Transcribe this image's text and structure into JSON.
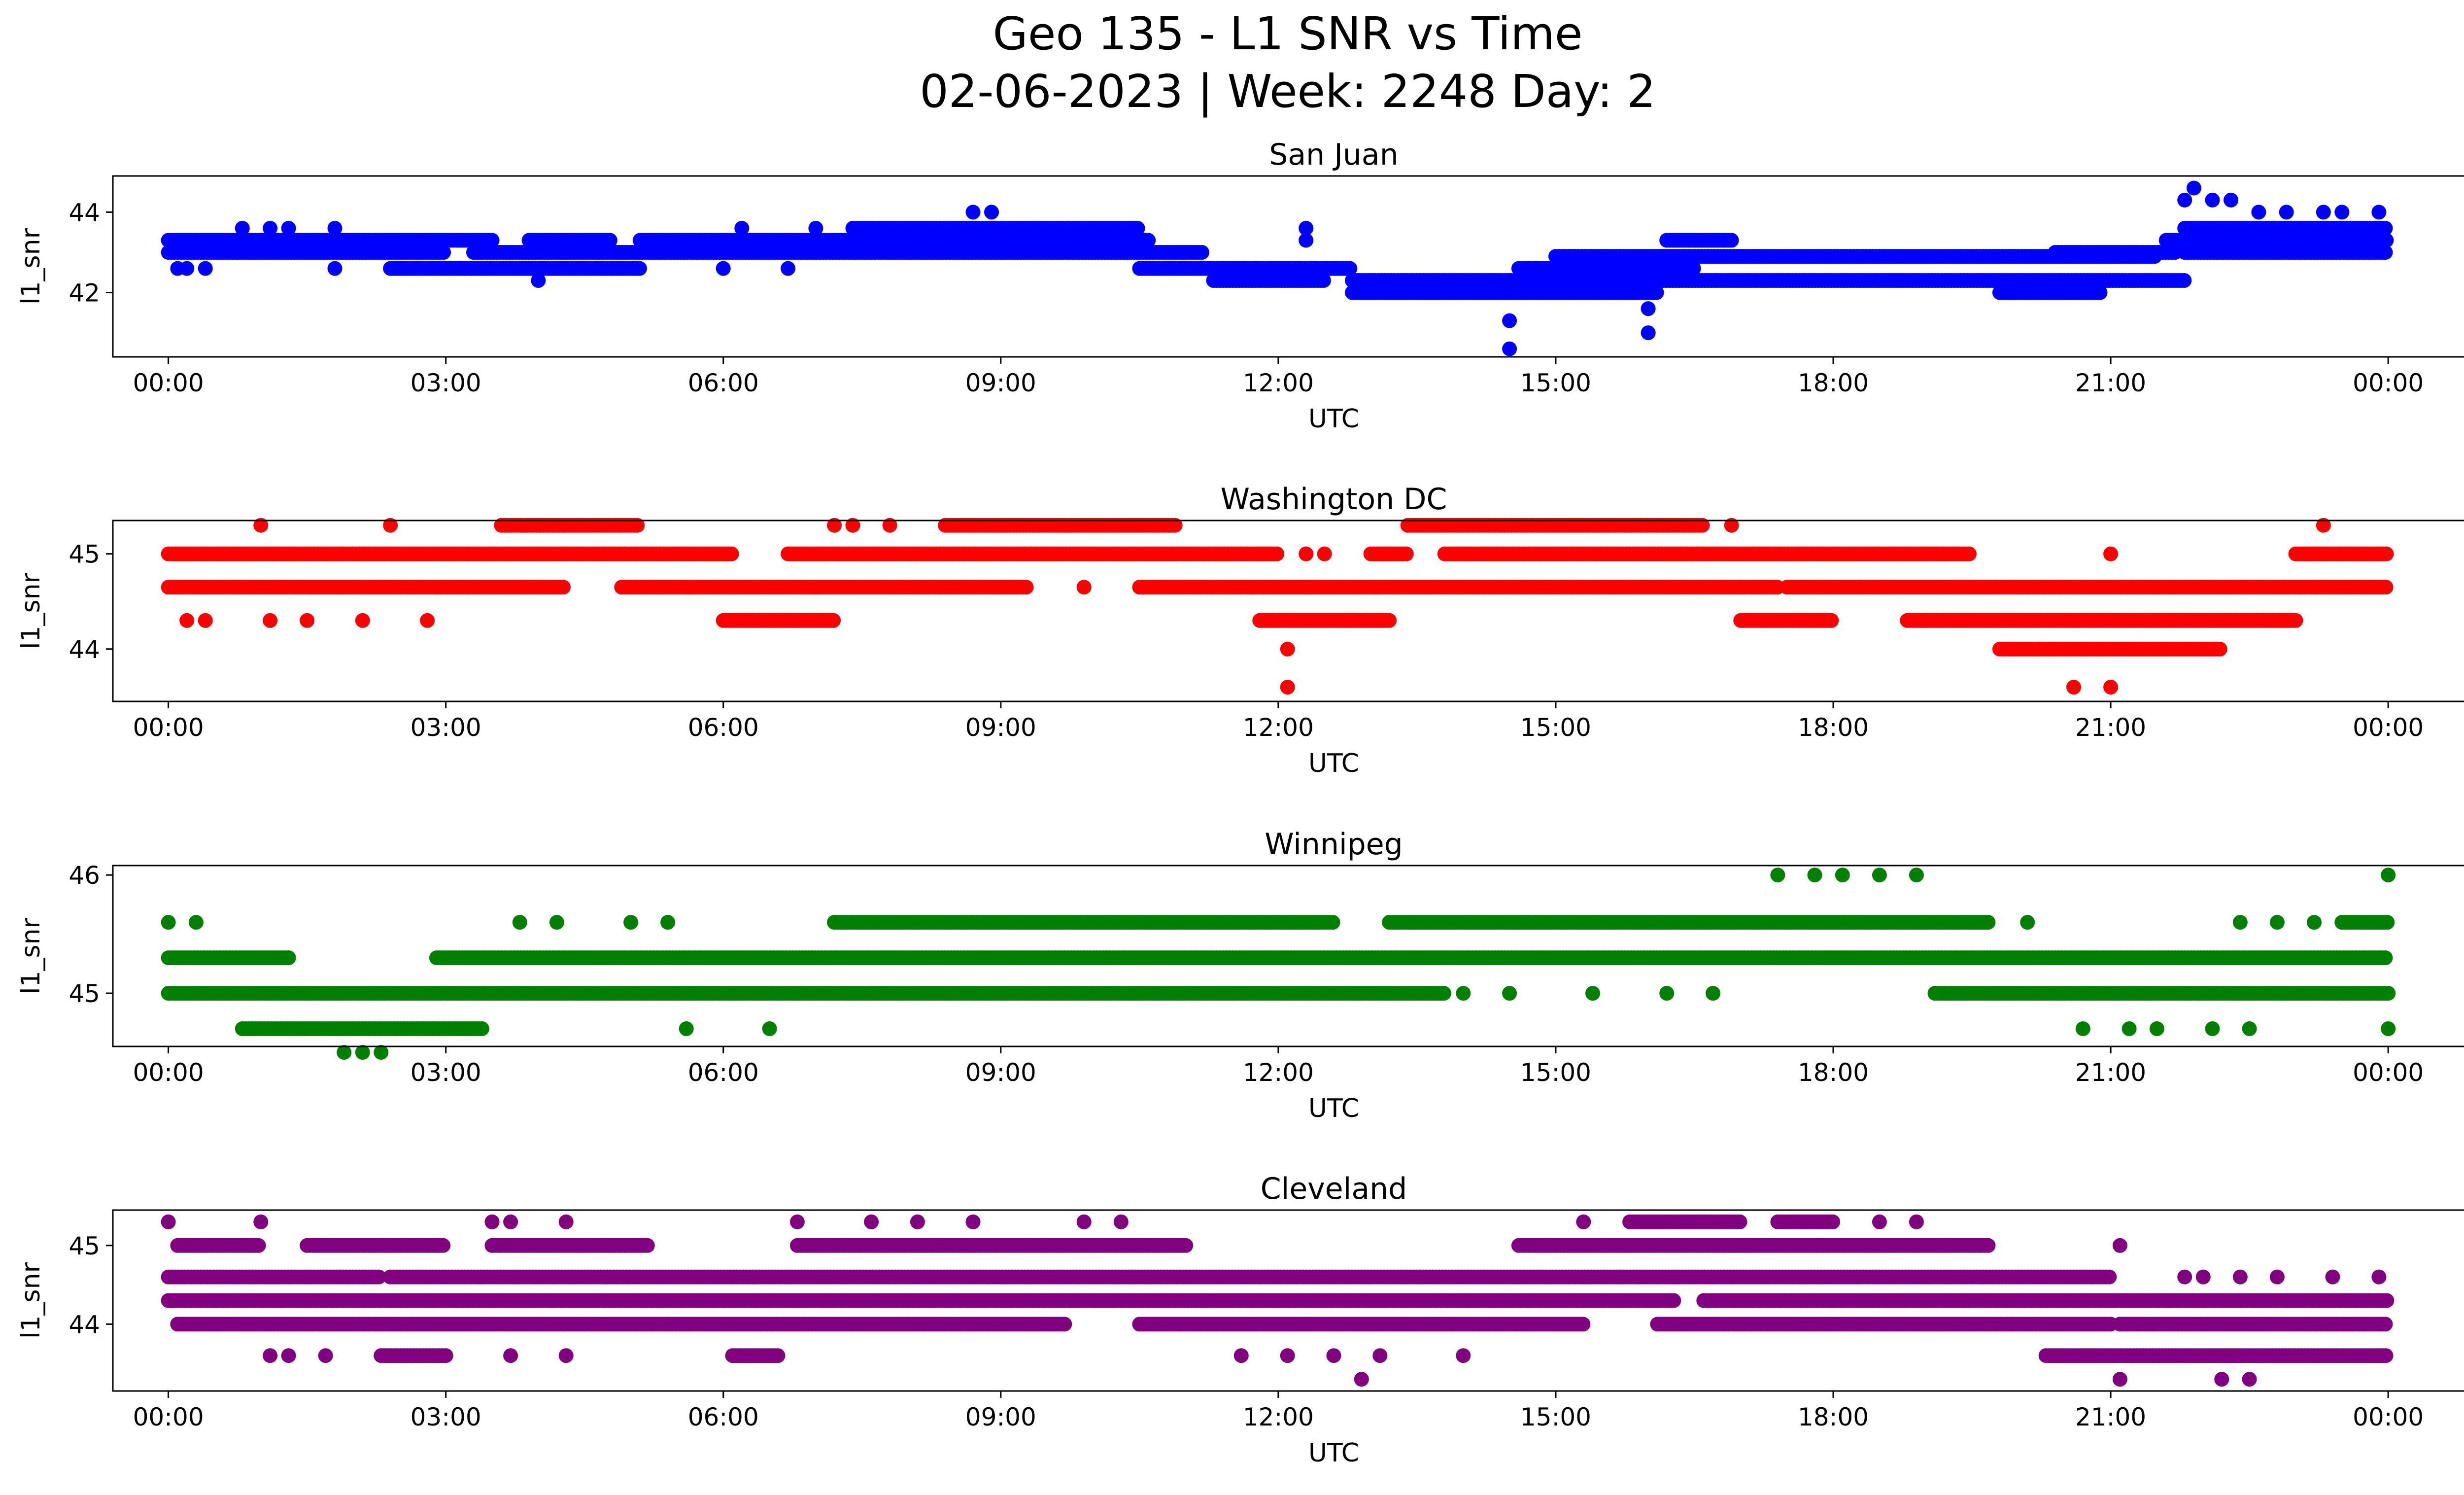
{
  "figure": {
    "title_line1": "Geo 135 - L1 SNR vs Time",
    "title_line2": "02-06-2023 | Week: 2248 Day: 2"
  },
  "chart_data": [
    {
      "type": "scatter",
      "title": "San Juan",
      "xlabel": "UTC",
      "ylabel": "l1_snr",
      "color": "#0000ff",
      "x_ticks": [
        "00:00",
        "03:00",
        "06:00",
        "09:00",
        "12:00",
        "15:00",
        "18:00",
        "21:00",
        "00:00"
      ],
      "xlim_hours": [
        -0.6,
        25.8
      ],
      "ylim": [
        40.4,
        44.9
      ],
      "y_ticks": [
        42,
        44
      ],
      "bands": [
        {
          "y": 43.3,
          "segments": [
            [
              0,
              3.5
            ],
            [
              3.9,
              4.8
            ],
            [
              5.1,
              10.6
            ],
            [
              16.2,
              16.9
            ],
            [
              21.6,
              24
            ]
          ]
        },
        {
          "y": 43.0,
          "segments": [
            [
              0,
              3.0
            ],
            [
              3.3,
              11.2
            ],
            [
              20.4,
              21.7
            ],
            [
              21.8,
              24
            ]
          ]
        },
        {
          "y": 42.6,
          "segments": [
            [
              2.4,
              5.1
            ],
            [
              10.5,
              12.8
            ],
            [
              14.6,
              16.5
            ]
          ]
        },
        {
          "y": 42.3,
          "segments": [
            [
              11.3,
              12.5
            ],
            [
              12.8,
              21.8
            ]
          ]
        },
        {
          "y": 42.0,
          "segments": [
            [
              12.8,
              16.1
            ],
            [
              19.8,
              20.9
            ]
          ]
        },
        {
          "y": 43.6,
          "segments": [
            [
              7.4,
              10.5
            ],
            [
              21.8,
              24
            ]
          ]
        },
        {
          "y": 42.9,
          "segments": [
            [
              15.0,
              21.5
            ]
          ]
        }
      ],
      "points": [
        [
          0.1,
          42.6
        ],
        [
          0.2,
          42.6
        ],
        [
          0.4,
          42.6
        ],
        [
          0.8,
          43.6
        ],
        [
          1.1,
          43.6
        ],
        [
          1.3,
          43.6
        ],
        [
          1.8,
          42.6
        ],
        [
          1.8,
          43.6
        ],
        [
          4.0,
          42.3
        ],
        [
          6.0,
          42.6
        ],
        [
          6.2,
          43.6
        ],
        [
          6.7,
          42.6
        ],
        [
          7.0,
          43.6
        ],
        [
          8.7,
          44.0
        ],
        [
          8.9,
          44.0
        ],
        [
          12.3,
          43.6
        ],
        [
          12.3,
          43.3
        ],
        [
          14.5,
          41.3
        ],
        [
          14.5,
          40.6
        ],
        [
          16.0,
          41.6
        ],
        [
          16.0,
          41.0
        ],
        [
          21.8,
          44.3
        ],
        [
          21.9,
          44.6
        ],
        [
          22.1,
          44.3
        ],
        [
          22.3,
          44.3
        ],
        [
          22.6,
          44.0
        ],
        [
          22.9,
          44.0
        ],
        [
          23.3,
          44.0
        ],
        [
          23.5,
          44.0
        ],
        [
          23.9,
          44.0
        ]
      ]
    },
    {
      "type": "scatter",
      "title": "Washington DC",
      "xlabel": "UTC",
      "ylabel": "l1_snr",
      "color": "#ff0000",
      "x_ticks": [
        "00:00",
        "03:00",
        "06:00",
        "09:00",
        "12:00",
        "15:00",
        "18:00",
        "21:00",
        "00:00"
      ],
      "xlim_hours": [
        -0.6,
        25.8
      ],
      "ylim": [
        43.45,
        45.35
      ],
      "y_ticks": [
        44,
        45
      ],
      "bands": [
        {
          "y": 45.0,
          "segments": [
            [
              0,
              6.1
            ],
            [
              6.7,
              12.0
            ],
            [
              13.0,
              13.4
            ],
            [
              13.8,
              19.5
            ],
            [
              23.0,
              24
            ]
          ]
        },
        {
          "y": 44.65,
          "segments": [
            [
              0,
              4.3
            ],
            [
              4.9,
              9.3
            ],
            [
              10.5,
              17.4
            ],
            [
              17.5,
              24
            ]
          ]
        },
        {
          "y": 44.3,
          "segments": [
            [
              6.0,
              7.2
            ],
            [
              11.8,
              13.2
            ],
            [
              17.0,
              18.0
            ],
            [
              18.8,
              23.0
            ]
          ]
        },
        {
          "y": 45.3,
          "segments": [
            [
              3.6,
              5.1
            ],
            [
              8.4,
              10.9
            ],
            [
              13.4,
              16.6
            ]
          ]
        },
        {
          "y": 44.0,
          "segments": [
            [
              19.8,
              22.2
            ]
          ]
        }
      ],
      "points": [
        [
          0.2,
          44.3
        ],
        [
          0.4,
          44.3
        ],
        [
          1.1,
          44.3
        ],
        [
          1.5,
          44.3
        ],
        [
          2.1,
          44.3
        ],
        [
          2.8,
          44.3
        ],
        [
          1.0,
          45.3
        ],
        [
          2.4,
          45.3
        ],
        [
          7.2,
          45.3
        ],
        [
          7.4,
          45.3
        ],
        [
          7.8,
          45.3
        ],
        [
          12.1,
          44.0
        ],
        [
          12.1,
          43.6
        ],
        [
          12.3,
          45.0
        ],
        [
          12.5,
          45.0
        ],
        [
          20.6,
          43.6
        ],
        [
          21.0,
          43.6
        ],
        [
          21.0,
          45.0
        ],
        [
          16.9,
          45.3
        ],
        [
          23.3,
          45.3
        ],
        [
          9.9,
          44.65
        ]
      ]
    },
    {
      "type": "scatter",
      "title": "Winnipeg",
      "xlabel": "UTC",
      "ylabel": "l1_snr",
      "color": "#008000",
      "x_ticks": [
        "00:00",
        "03:00",
        "06:00",
        "09:00",
        "12:00",
        "15:00",
        "18:00",
        "21:00",
        "00:00"
      ],
      "xlim_hours": [
        -0.6,
        25.8
      ],
      "ylim": [
        44.55,
        46.08
      ],
      "y_ticks": [
        45,
        46
      ],
      "bands": [
        {
          "y": 45.3,
          "segments": [
            [
              0,
              1.3
            ],
            [
              2.9,
              24
            ]
          ]
        },
        {
          "y": 45.0,
          "segments": [
            [
              0,
              13.8
            ],
            [
              19.1,
              24
            ]
          ]
        },
        {
          "y": 44.7,
          "segments": [
            [
              0.8,
              3.4
            ]
          ]
        },
        {
          "y": 45.6,
          "segments": [
            [
              7.2,
              12.6
            ],
            [
              13.2,
              19.7
            ],
            [
              23.5,
              24
            ]
          ]
        }
      ],
      "points": [
        [
          0.0,
          45.6
        ],
        [
          0.3,
          45.6
        ],
        [
          1.3,
          45.3
        ],
        [
          1.9,
          44.5
        ],
        [
          2.1,
          44.5
        ],
        [
          2.3,
          44.5
        ],
        [
          3.8,
          45.6
        ],
        [
          4.2,
          45.6
        ],
        [
          5.0,
          45.6
        ],
        [
          5.4,
          45.6
        ],
        [
          5.6,
          44.7
        ],
        [
          6.5,
          44.7
        ],
        [
          14.0,
          45.0
        ],
        [
          14.5,
          45.0
        ],
        [
          15.4,
          45.0
        ],
        [
          16.2,
          45.0
        ],
        [
          16.7,
          45.0
        ],
        [
          17.4,
          46.0
        ],
        [
          17.8,
          46.0
        ],
        [
          18.1,
          46.0
        ],
        [
          18.5,
          46.0
        ],
        [
          18.9,
          46.0
        ],
        [
          20.1,
          45.6
        ],
        [
          20.7,
          44.7
        ],
        [
          21.2,
          44.7
        ],
        [
          21.5,
          44.7
        ],
        [
          22.1,
          44.7
        ],
        [
          22.5,
          44.7
        ],
        [
          22.4,
          45.6
        ],
        [
          22.8,
          45.6
        ],
        [
          23.2,
          45.6
        ],
        [
          24.0,
          46.0
        ],
        [
          24.0,
          44.7
        ]
      ]
    },
    {
      "type": "scatter",
      "title": "Cleveland",
      "xlabel": "UTC",
      "ylabel": "l1_snr",
      "color": "#800080",
      "x_ticks": [
        "00:00",
        "03:00",
        "06:00",
        "09:00",
        "12:00",
        "15:00",
        "18:00",
        "21:00",
        "00:00"
      ],
      "xlim_hours": [
        -0.6,
        25.8
      ],
      "ylim": [
        43.15,
        45.45
      ],
      "y_ticks": [
        44,
        45
      ],
      "bands": [
        {
          "y": 44.3,
          "segments": [
            [
              0,
              16.3
            ],
            [
              16.6,
              24
            ]
          ]
        },
        {
          "y": 44.6,
          "segments": [
            [
              0,
              2.3
            ],
            [
              2.4,
              21.0
            ]
          ]
        },
        {
          "y": 44.0,
          "segments": [
            [
              0.1,
              9.7
            ],
            [
              10.5,
              15.3
            ],
            [
              16.1,
              21.0
            ],
            [
              21.1,
              24
            ]
          ]
        },
        {
          "y": 45.0,
          "segments": [
            [
              0.1,
              1.0
            ],
            [
              1.5,
              3.0
            ],
            [
              3.5,
              5.2
            ],
            [
              6.8,
              11.0
            ],
            [
              14.6,
              19.7
            ]
          ]
        },
        {
          "y": 43.6,
          "segments": [
            [
              2.3,
              3.0
            ],
            [
              6.1,
              6.6
            ],
            [
              20.3,
              24
            ]
          ]
        },
        {
          "y": 45.3,
          "segments": [
            [
              15.8,
              17.0
            ],
            [
              17.4,
              18.0
            ]
          ]
        }
      ],
      "points": [
        [
          0.0,
          45.3
        ],
        [
          1.0,
          45.3
        ],
        [
          3.5,
          45.3
        ],
        [
          3.7,
          45.3
        ],
        [
          4.3,
          45.3
        ],
        [
          6.8,
          45.3
        ],
        [
          7.6,
          45.3
        ],
        [
          8.1,
          45.3
        ],
        [
          8.7,
          45.3
        ],
        [
          9.9,
          45.3
        ],
        [
          10.3,
          45.3
        ],
        [
          1.1,
          43.6
        ],
        [
          1.3,
          43.6
        ],
        [
          1.7,
          43.6
        ],
        [
          3.7,
          43.6
        ],
        [
          4.3,
          43.6
        ],
        [
          11.6,
          43.6
        ],
        [
          12.1,
          43.6
        ],
        [
          12.6,
          43.6
        ],
        [
          12.9,
          43.3
        ],
        [
          13.1,
          43.6
        ],
        [
          14.0,
          43.6
        ],
        [
          15.3,
          45.3
        ],
        [
          18.5,
          45.3
        ],
        [
          18.9,
          45.3
        ],
        [
          21.1,
          43.3
        ],
        [
          22.2,
          43.3
        ],
        [
          22.5,
          43.3
        ],
        [
          21.8,
          44.6
        ],
        [
          22.0,
          44.6
        ],
        [
          22.4,
          44.6
        ],
        [
          22.8,
          44.6
        ],
        [
          23.4,
          44.6
        ],
        [
          23.9,
          44.6
        ],
        [
          21.1,
          45.0
        ]
      ]
    }
  ]
}
